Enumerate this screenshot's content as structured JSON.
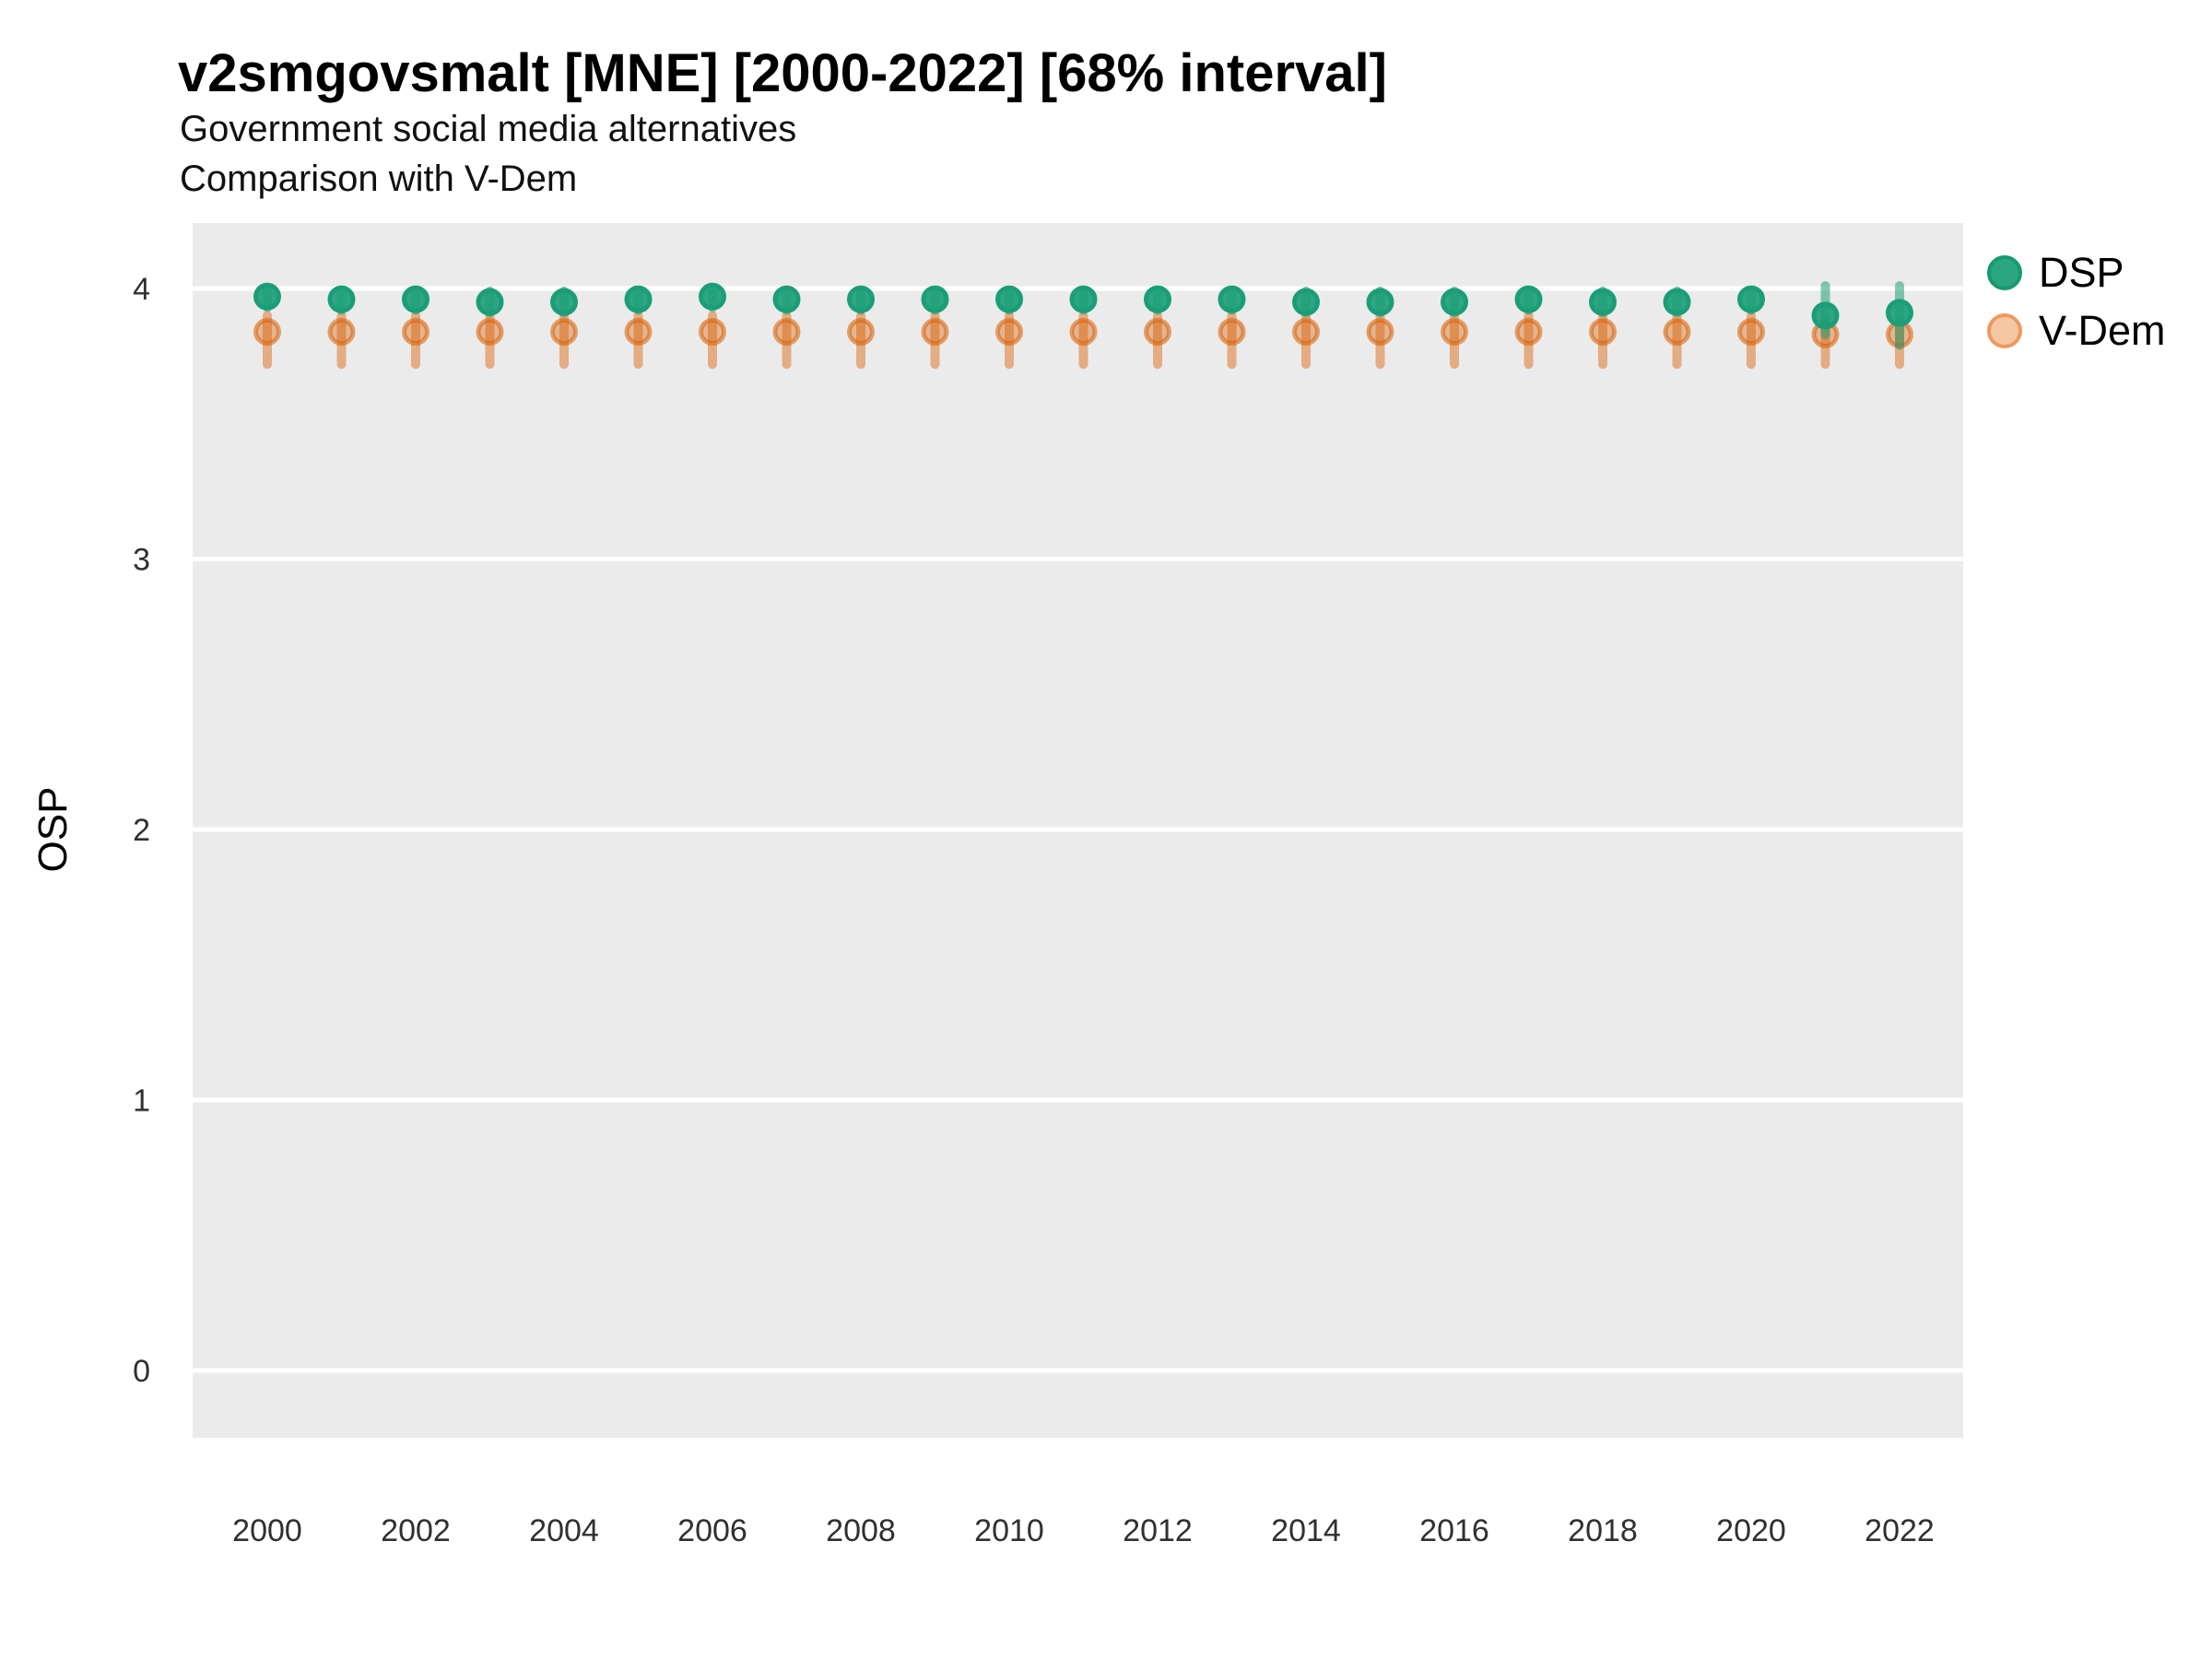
{
  "header": {
    "title": "v2smgovsmalt [MNE] [2000-2022] [68% interval]",
    "subtitle1": "Government social media alternatives",
    "subtitle2": "Comparison with V-Dem"
  },
  "chart_data": {
    "type": "pointrange",
    "title": "v2smgovsmalt [MNE] [2000-2022] [68% interval]",
    "subtitle": "Government social media alternatives",
    "subtitle2": "Comparison with V-Dem",
    "interval": "68%",
    "ylabel": "OSP",
    "xlabel": "",
    "ylim": [
      -0.25,
      4.24
    ],
    "yticks": [
      0,
      1,
      2,
      3,
      4
    ],
    "xlim": [
      1999.0,
      2022.9
    ],
    "xticks": [
      2000,
      2002,
      2004,
      2006,
      2008,
      2010,
      2012,
      2014,
      2016,
      2018,
      2020,
      2022
    ],
    "grid": "major-horizontal-only",
    "panel_bg": "#ebebeb",
    "gridline_color": "#ffffff",
    "tick_label_color": "#303030",
    "legend_position": "right",
    "series": [
      {
        "name": "DSP",
        "color": "#1b9e77",
        "marker_fill": "rgba(27,158,119,0.9)",
        "marker_stroke": "#1b9e77",
        "range_line": "rgba(27,158,119,0.55)",
        "legend_fill": "#2aa67e",
        "legend_stroke": "#169a71",
        "points": [
          {
            "year": 2000,
            "value": 3.97,
            "lo": 3.93,
            "hi": 4.0
          },
          {
            "year": 2001,
            "value": 3.96,
            "lo": 3.92,
            "hi": 3.99
          },
          {
            "year": 2002,
            "value": 3.96,
            "lo": 3.92,
            "hi": 3.99
          },
          {
            "year": 2003,
            "value": 3.95,
            "lo": 3.91,
            "hi": 3.99
          },
          {
            "year": 2004,
            "value": 3.95,
            "lo": 3.91,
            "hi": 3.99
          },
          {
            "year": 2005,
            "value": 3.96,
            "lo": 3.92,
            "hi": 3.99
          },
          {
            "year": 2006,
            "value": 3.97,
            "lo": 3.93,
            "hi": 4.0
          },
          {
            "year": 2007,
            "value": 3.96,
            "lo": 3.92,
            "hi": 3.99
          },
          {
            "year": 2008,
            "value": 3.96,
            "lo": 3.92,
            "hi": 3.99
          },
          {
            "year": 2009,
            "value": 3.96,
            "lo": 3.92,
            "hi": 3.99
          },
          {
            "year": 2010,
            "value": 3.96,
            "lo": 3.92,
            "hi": 3.99
          },
          {
            "year": 2011,
            "value": 3.96,
            "lo": 3.92,
            "hi": 3.99
          },
          {
            "year": 2012,
            "value": 3.96,
            "lo": 3.92,
            "hi": 3.99
          },
          {
            "year": 2013,
            "value": 3.96,
            "lo": 3.92,
            "hi": 3.99
          },
          {
            "year": 2014,
            "value": 3.95,
            "lo": 3.91,
            "hi": 3.99
          },
          {
            "year": 2015,
            "value": 3.95,
            "lo": 3.91,
            "hi": 3.99
          },
          {
            "year": 2016,
            "value": 3.95,
            "lo": 3.91,
            "hi": 3.99
          },
          {
            "year": 2017,
            "value": 3.96,
            "lo": 3.92,
            "hi": 3.99
          },
          {
            "year": 2018,
            "value": 3.95,
            "lo": 3.91,
            "hi": 3.99
          },
          {
            "year": 2019,
            "value": 3.95,
            "lo": 3.91,
            "hi": 3.99
          },
          {
            "year": 2020,
            "value": 3.96,
            "lo": 3.92,
            "hi": 3.99
          },
          {
            "year": 2021,
            "value": 3.9,
            "lo": 3.83,
            "hi": 4.01
          },
          {
            "year": 2022,
            "value": 3.91,
            "lo": 3.79,
            "hi": 4.01
          }
        ]
      },
      {
        "name": "V-Dem",
        "color": "#d95f02",
        "marker_fill": "rgba(217,95,2,0.38)",
        "marker_stroke": "rgba(217,95,2,0.55)",
        "range_line": "rgba(217,95,2,0.45)",
        "legend_fill": "#f4c7a2",
        "legend_stroke": "#ec9a60",
        "points": [
          {
            "year": 2000,
            "value": 3.84,
            "lo": 3.72,
            "hi": 3.9
          },
          {
            "year": 2001,
            "value": 3.84,
            "lo": 3.72,
            "hi": 3.9
          },
          {
            "year": 2002,
            "value": 3.84,
            "lo": 3.72,
            "hi": 3.9
          },
          {
            "year": 2003,
            "value": 3.84,
            "lo": 3.72,
            "hi": 3.9
          },
          {
            "year": 2004,
            "value": 3.84,
            "lo": 3.72,
            "hi": 3.9
          },
          {
            "year": 2005,
            "value": 3.84,
            "lo": 3.72,
            "hi": 3.9
          },
          {
            "year": 2006,
            "value": 3.84,
            "lo": 3.72,
            "hi": 3.9
          },
          {
            "year": 2007,
            "value": 3.84,
            "lo": 3.72,
            "hi": 3.9
          },
          {
            "year": 2008,
            "value": 3.84,
            "lo": 3.72,
            "hi": 3.9
          },
          {
            "year": 2009,
            "value": 3.84,
            "lo": 3.72,
            "hi": 3.9
          },
          {
            "year": 2010,
            "value": 3.84,
            "lo": 3.72,
            "hi": 3.9
          },
          {
            "year": 2011,
            "value": 3.84,
            "lo": 3.72,
            "hi": 3.9
          },
          {
            "year": 2012,
            "value": 3.84,
            "lo": 3.72,
            "hi": 3.9
          },
          {
            "year": 2013,
            "value": 3.84,
            "lo": 3.72,
            "hi": 3.9
          },
          {
            "year": 2014,
            "value": 3.84,
            "lo": 3.72,
            "hi": 3.9
          },
          {
            "year": 2015,
            "value": 3.84,
            "lo": 3.72,
            "hi": 3.9
          },
          {
            "year": 2016,
            "value": 3.84,
            "lo": 3.72,
            "hi": 3.9
          },
          {
            "year": 2017,
            "value": 3.84,
            "lo": 3.72,
            "hi": 3.9
          },
          {
            "year": 2018,
            "value": 3.84,
            "lo": 3.72,
            "hi": 3.9
          },
          {
            "year": 2019,
            "value": 3.84,
            "lo": 3.72,
            "hi": 3.9
          },
          {
            "year": 2020,
            "value": 3.84,
            "lo": 3.72,
            "hi": 3.9
          },
          {
            "year": 2021,
            "value": 3.83,
            "lo": 3.72,
            "hi": 3.88
          },
          {
            "year": 2022,
            "value": 3.83,
            "lo": 3.72,
            "hi": 3.88
          }
        ]
      }
    ]
  }
}
